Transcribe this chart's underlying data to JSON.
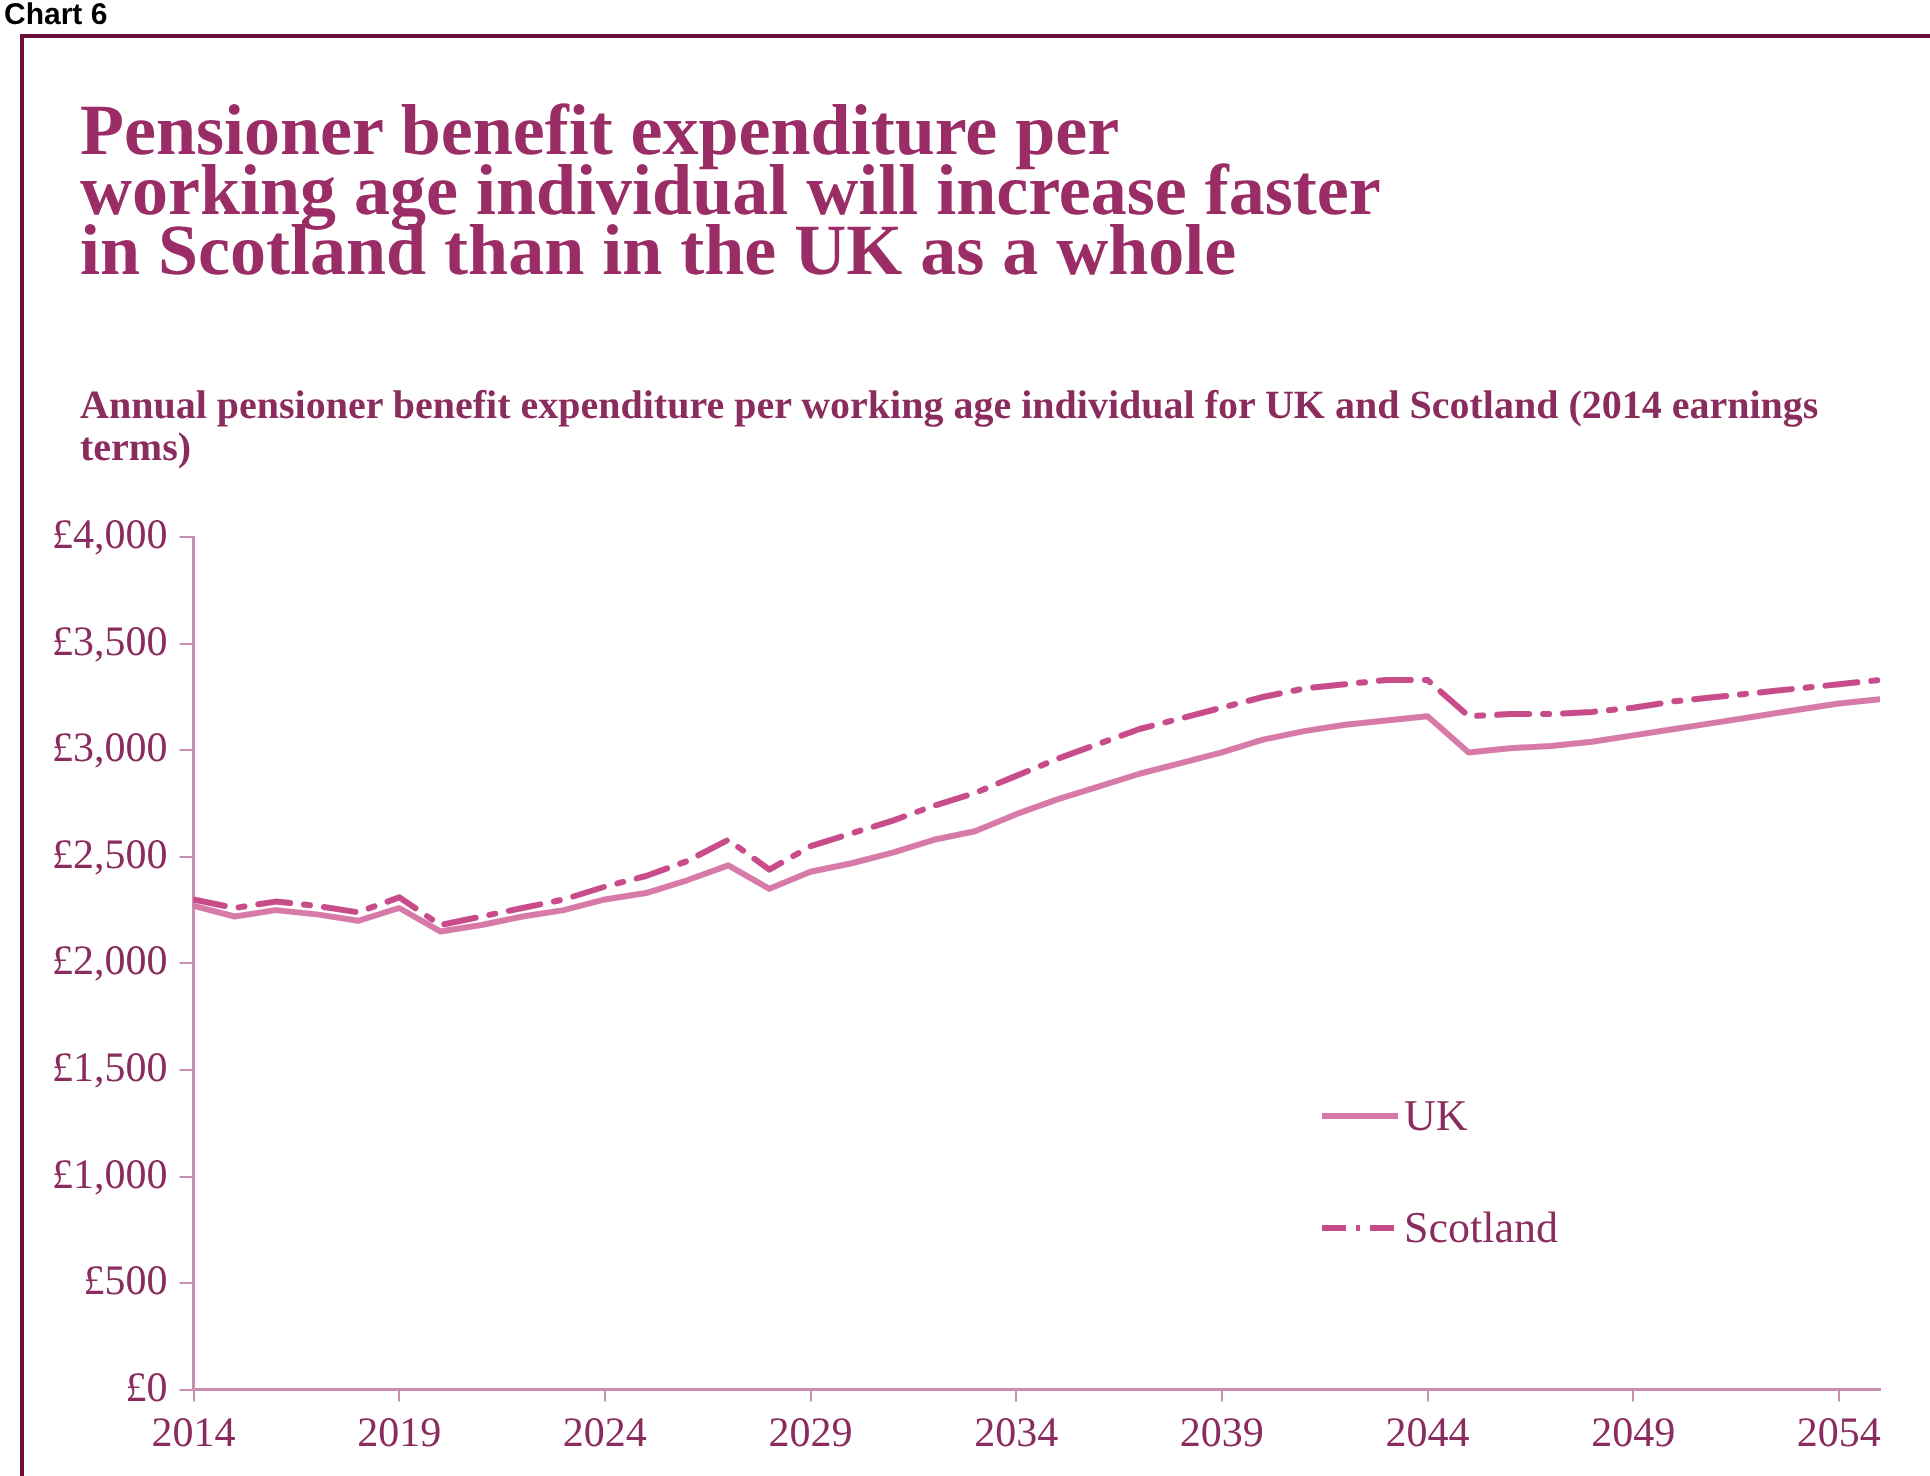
{
  "chart_data": {
    "type": "line",
    "title": "Pensioner benefit expenditure per working age individual will increase faster in Scotland than in the UK as a whole",
    "subtitle": "Annual pensioner benefit expenditure per working age individual for UK and Scotland (2014 earnings terms)",
    "annotations": [
      "Chart 6"
    ],
    "x": [
      2014,
      2015,
      2016,
      2017,
      2018,
      2019,
      2020,
      2021,
      2022,
      2023,
      2024,
      2025,
      2026,
      2027,
      2028,
      2029,
      2030,
      2031,
      2032,
      2033,
      2034,
      2035,
      2036,
      2037,
      2038,
      2039,
      2040,
      2041,
      2042,
      2043,
      2044,
      2045,
      2046,
      2047,
      2048,
      2049,
      2050,
      2051,
      2052,
      2053,
      2054,
      2055
    ],
    "series": [
      {
        "name": "UK",
        "color": "#d77aa8",
        "line_style": "solid",
        "values": [
          2270,
          2220,
          2250,
          2230,
          2200,
          2260,
          2150,
          2180,
          2220,
          2250,
          2300,
          2330,
          2390,
          2460,
          2350,
          2430,
          2470,
          2520,
          2580,
          2620,
          2700,
          2770,
          2830,
          2890,
          2940,
          2990,
          3050,
          3090,
          3120,
          3140,
          3160,
          2990,
          3010,
          3020,
          3040,
          3070,
          3100,
          3130,
          3160,
          3190,
          3220,
          3240
        ]
      },
      {
        "name": "Scotland",
        "color": "#c84b8a",
        "line_style": "dashed",
        "values": [
          2300,
          2260,
          2290,
          2270,
          2240,
          2310,
          2180,
          2220,
          2260,
          2300,
          2360,
          2410,
          2480,
          2580,
          2440,
          2550,
          2610,
          2670,
          2740,
          2800,
          2880,
          2960,
          3030,
          3100,
          3150,
          3200,
          3250,
          3290,
          3310,
          3330,
          3330,
          3160,
          3170,
          3170,
          3180,
          3200,
          3230,
          3250,
          3270,
          3290,
          3310,
          3330
        ]
      }
    ],
    "xlim": [
      2014,
      2055
    ],
    "xticks": [
      2014,
      2019,
      2024,
      2029,
      2034,
      2039,
      2044,
      2049,
      2054
    ],
    "ylim": [
      0,
      4000
    ],
    "yticks": [
      {
        "value": 0,
        "label": "£0"
      },
      {
        "value": 500,
        "label": "£500"
      },
      {
        "value": 1000,
        "label": "£1,000"
      },
      {
        "value": 1500,
        "label": "£1,500"
      },
      {
        "value": 2000,
        "label": "£2,000"
      },
      {
        "value": 2500,
        "label": "£2,500"
      },
      {
        "value": 3000,
        "label": "£3,000"
      },
      {
        "value": 3500,
        "label": "£3,500"
      },
      {
        "value": 4000,
        "label": "£4,000"
      }
    ],
    "grid": false,
    "legend": "bottom right",
    "marker": "none"
  }
}
